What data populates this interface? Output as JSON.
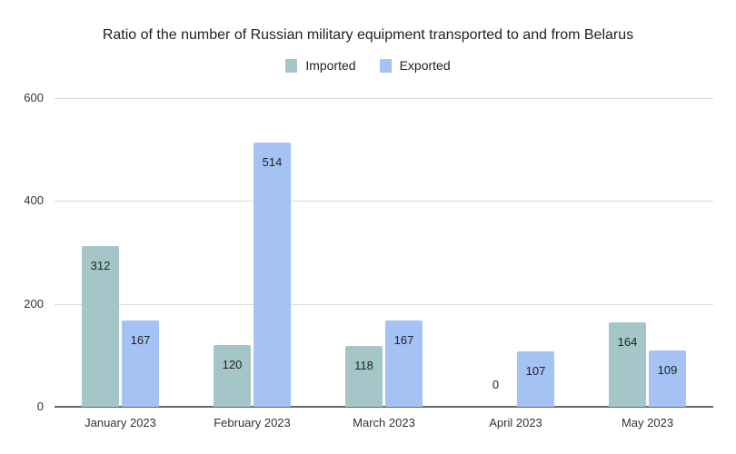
{
  "chart_data": {
    "type": "bar",
    "title": "Ratio of the number of Russian military equipment transported to and from Belarus",
    "categories": [
      "January 2023",
      "February 2023",
      "March 2023",
      "April 2023",
      "May 2023"
    ],
    "series": [
      {
        "name": "Imported",
        "color": "#a5c6c8",
        "values": [
          312,
          120,
          118,
          0,
          164
        ]
      },
      {
        "name": "Exported",
        "color": "#a4c2f4",
        "values": [
          167,
          514,
          167,
          107,
          109
        ]
      }
    ],
    "xlabel": "",
    "ylabel": "",
    "ylim": [
      0,
      600
    ],
    "yticks": [
      "0",
      "200",
      "400",
      "600"
    ],
    "grid": true,
    "legend_position": "top",
    "data_labels": true
  }
}
